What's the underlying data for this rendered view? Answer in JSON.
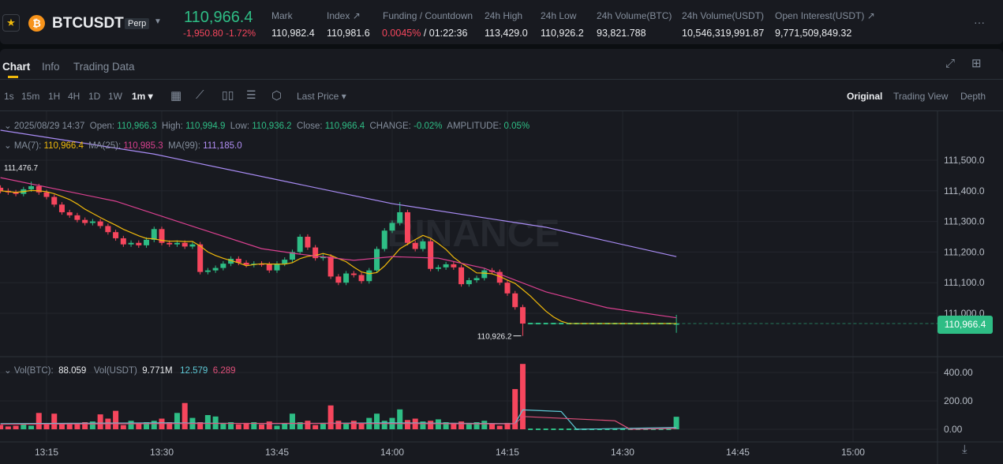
{
  "header": {
    "symbol": "BTCUSDT",
    "contract_badge": "Perp",
    "last_price": "110,966.4",
    "change": "-1,950.80 -1.72%",
    "stats": [
      {
        "label": "Mark",
        "value": "110,982.4"
      },
      {
        "label": "Index ↗",
        "value": "110,981.6"
      },
      {
        "label": "Funding / Countdown",
        "value_rate": "0.0045%",
        "value_countdown": " / 01:22:36"
      },
      {
        "label": "24h High",
        "value": "113,429.0"
      },
      {
        "label": "24h Low",
        "value": "110,926.2"
      },
      {
        "label": "24h Volume(BTC)",
        "value": "93,821.788"
      },
      {
        "label": "24h Volume(USDT)",
        "value": "10,546,319,991.87"
      },
      {
        "label": "Open Interest(USDT) ↗",
        "value": "9,771,509,849.32"
      }
    ],
    "more": "···"
  },
  "tabs": [
    "Chart",
    "Info",
    "Trading Data"
  ],
  "toolbar": {
    "intervals": [
      "1s",
      "15m",
      "1H",
      "4H",
      "1D",
      "1W"
    ],
    "selected_interval": "1m ▾",
    "price_type": "Last Price ▾",
    "views": [
      "Original",
      "Trading View",
      "Depth"
    ]
  },
  "legend": {
    "date": "2025/08/29 14:37",
    "open_l": "Open:",
    "open": "110,966.3",
    "high_l": "High:",
    "high": "110,994.9",
    "low_l": "Low:",
    "low": "110,936.2",
    "close_l": "Close:",
    "close": "110,966.4",
    "change_l": "CHANGE:",
    "change": "-0.02%",
    "amp_l": "AMPLITUDE:",
    "amp": "0.05%",
    "ma7_l": "MA(7):",
    "ma7": "110,966.4",
    "ma25_l": "MA(25):",
    "ma25": "110,985.3",
    "ma99_l": "MA(99):",
    "ma99": "111,185.0",
    "vol_btc_l": "Vol(BTC):",
    "vol_btc": "88.059",
    "vol_usdt_l": "Vol(USDT)",
    "vol_usdt": "9.771M",
    "vol_ma1": "12.579",
    "vol_ma2": "6.289"
  },
  "colors": {
    "up": "#2ebd85",
    "down": "#f6465d",
    "ma7": "#f0b90b",
    "ma25": "#d9408f",
    "ma99": "#a98cf5",
    "vol_ma1": "#5ec9d6",
    "vol_ma2": "#e0507a"
  },
  "watermark": "BINANCE",
  "chart_data": {
    "type": "candlestick",
    "interval": "1m",
    "start_time": "13:09",
    "first_open": 111410,
    "closes": [
      111400,
      111395,
      111390,
      111405,
      111415,
      111395,
      111380,
      111355,
      111330,
      111320,
      111305,
      111295,
      111300,
      111285,
      111265,
      111245,
      111225,
      111230,
      111222,
      111240,
      111275,
      111230,
      111225,
      111230,
      111218,
      111225,
      111135,
      111140,
      111148,
      111162,
      111178,
      111165,
      111158,
      111162,
      111160,
      111140,
      111162,
      111175,
      111200,
      111250,
      111215,
      111180,
      111185,
      111120,
      111100,
      111130,
      111125,
      111105,
      111140,
      111210,
      111270,
      111295,
      111330,
      111230,
      111210,
      111235,
      111145,
      111150,
      111160,
      111150,
      111095,
      111108,
      111115,
      111140,
      111135,
      111100,
      111065,
      111020,
      110966.4,
      110966.4,
      110966.4,
      110966.4,
      110966.4,
      110966.4,
      110966.4,
      110966.4,
      110966.4,
      110966.4,
      110966.4,
      110966.4,
      110966.4,
      110966.4,
      110966.4,
      110966.4,
      110966.4,
      110966.4,
      110966.4,
      110966.4,
      110966.4
    ],
    "volumes": [
      30,
      20,
      25,
      40,
      25,
      115,
      35,
      110,
      40,
      45,
      40,
      50,
      55,
      105,
      75,
      130,
      30,
      60,
      40,
      50,
      60,
      75,
      50,
      115,
      185,
      80,
      50,
      100,
      90,
      40,
      50,
      35,
      45,
      50,
      35,
      55,
      25,
      40,
      110,
      50,
      60,
      30,
      45,
      168,
      60,
      40,
      60,
      40,
      80,
      110,
      60,
      80,
      140,
      65,
      75,
      55,
      60,
      70,
      50,
      45,
      55,
      45,
      50,
      60,
      40,
      25,
      45,
      283,
      460,
      0,
      0,
      0,
      0,
      0,
      0,
      0,
      0,
      0,
      0,
      0,
      0,
      0,
      0,
      0,
      0,
      0,
      0,
      0,
      88.059
    ],
    "last_candle": {
      "open": 110966.3,
      "high": 110994.9,
      "low": 110936.2,
      "close": 110966.4
    },
    "marked_high": {
      "label": "111,476.7",
      "value": 111476.7
    },
    "marked_low": {
      "label": "110,926.2",
      "value": 110926.2,
      "time": "14:17"
    },
    "ma25": [
      [
        "13:09",
        111443
      ],
      [
        "13:24",
        111366
      ],
      [
        "13:35",
        111276
      ],
      [
        "13:43",
        111211
      ],
      [
        "13:48",
        111193
      ],
      [
        "13:55",
        111173
      ],
      [
        "14:00",
        111185
      ],
      [
        "14:06",
        111180
      ],
      [
        "14:12",
        111147
      ],
      [
        "14:20",
        111070
      ],
      [
        "14:28",
        111018
      ],
      [
        "14:37",
        110985.3
      ]
    ],
    "ma99": [
      [
        "13:09",
        111598
      ],
      [
        "13:29",
        111520
      ],
      [
        "14:00",
        111358
      ],
      [
        "14:20",
        111281
      ],
      [
        "14:37",
        111185
      ]
    ],
    "vol_ma1": [
      [
        "13:09",
        40
      ],
      [
        "13:30",
        45
      ],
      [
        "13:45",
        40
      ],
      [
        "14:00",
        45
      ],
      [
        "14:16",
        40
      ],
      [
        "14:17",
        137
      ],
      [
        "14:22",
        125
      ],
      [
        "14:24",
        0
      ],
      [
        "14:37",
        12.579
      ]
    ],
    "vol_ma2": [
      [
        "13:09",
        35
      ],
      [
        "13:30",
        40
      ],
      [
        "13:45",
        42
      ],
      [
        "14:00",
        40
      ],
      [
        "14:16",
        38
      ],
      [
        "14:17",
        90
      ],
      [
        "14:29",
        60
      ],
      [
        "14:31",
        0
      ],
      [
        "14:37",
        6.289
      ]
    ],
    "price_axis": {
      "ticks": [
        "111,500.0",
        "111,400.0",
        "111,300.0",
        "111,200.0",
        "111,100.0",
        "111,000.0"
      ],
      "tick_values": [
        111500,
        111400,
        111300,
        111200,
        111100,
        111000
      ]
    },
    "volume_axis": {
      "ticks": [
        "400.00",
        "200.00",
        "0.00"
      ],
      "tick_values": [
        400,
        200,
        0
      ]
    },
    "time_axis": {
      "ticks": [
        "13:15",
        "13:30",
        "13:45",
        "14:00",
        "14:15",
        "14:30",
        "14:45",
        "15:00"
      ]
    },
    "current_price_label": "110,966.4",
    "grid": true
  }
}
